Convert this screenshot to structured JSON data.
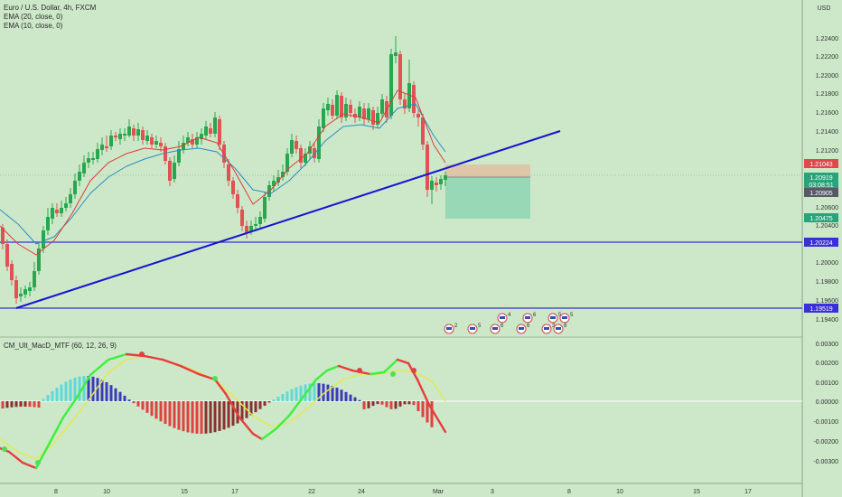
{
  "header": {
    "symbol_line": "Euro / U.S. Dollar, 4h, FXCM",
    "indicators": [
      "EMA (20, close, 0)",
      "EMA (10, close, 0)"
    ],
    "currency": "USD"
  },
  "price_axis": {
    "labels": [
      "1.22400",
      "1.22200",
      "1.22000",
      "1.21800",
      "1.21600",
      "1.21400",
      "1.21200",
      "1.20600",
      "1.20400",
      "1.20000",
      "1.19800",
      "1.19600",
      "1.19400"
    ],
    "badges": [
      {
        "text": "1.21043",
        "color": "#e0484e"
      },
      {
        "text": "1.20919",
        "color": "#2aa27a"
      },
      {
        "text": "03:08:51",
        "color": "#2aa27a"
      },
      {
        "text": "1.20905",
        "color": "#555a66"
      },
      {
        "text": "1.20475",
        "color": "#2aa27a"
      },
      {
        "text": "1.20224",
        "color": "#3a2fd8"
      },
      {
        "text": "1.19519",
        "color": "#3a2fd8"
      }
    ]
  },
  "macd": {
    "title": "CM_Ult_MacD_MTF (60, 12, 26, 9)",
    "labels": [
      "0.00300",
      "0.00200",
      "0.00100",
      "0.00000",
      "-0.00100",
      "-0.00200",
      "-0.00300"
    ]
  },
  "time_axis": {
    "labels": [
      "8",
      "10",
      "15",
      "17",
      "22",
      "24",
      "Mar",
      "3",
      "8",
      "10",
      "15",
      "17"
    ]
  },
  "events": [
    "2",
    "5",
    "6",
    "4",
    "6",
    "6",
    "3",
    "5",
    "8",
    "5"
  ],
  "colors": {
    "up": "#27a84f",
    "down": "#e05254",
    "trend": "#1515d0",
    "hline": "#3a2fd8",
    "macd_up": "#3cf03c",
    "macd_down": "#e83c3c",
    "signal": "#e8e84a"
  }
}
